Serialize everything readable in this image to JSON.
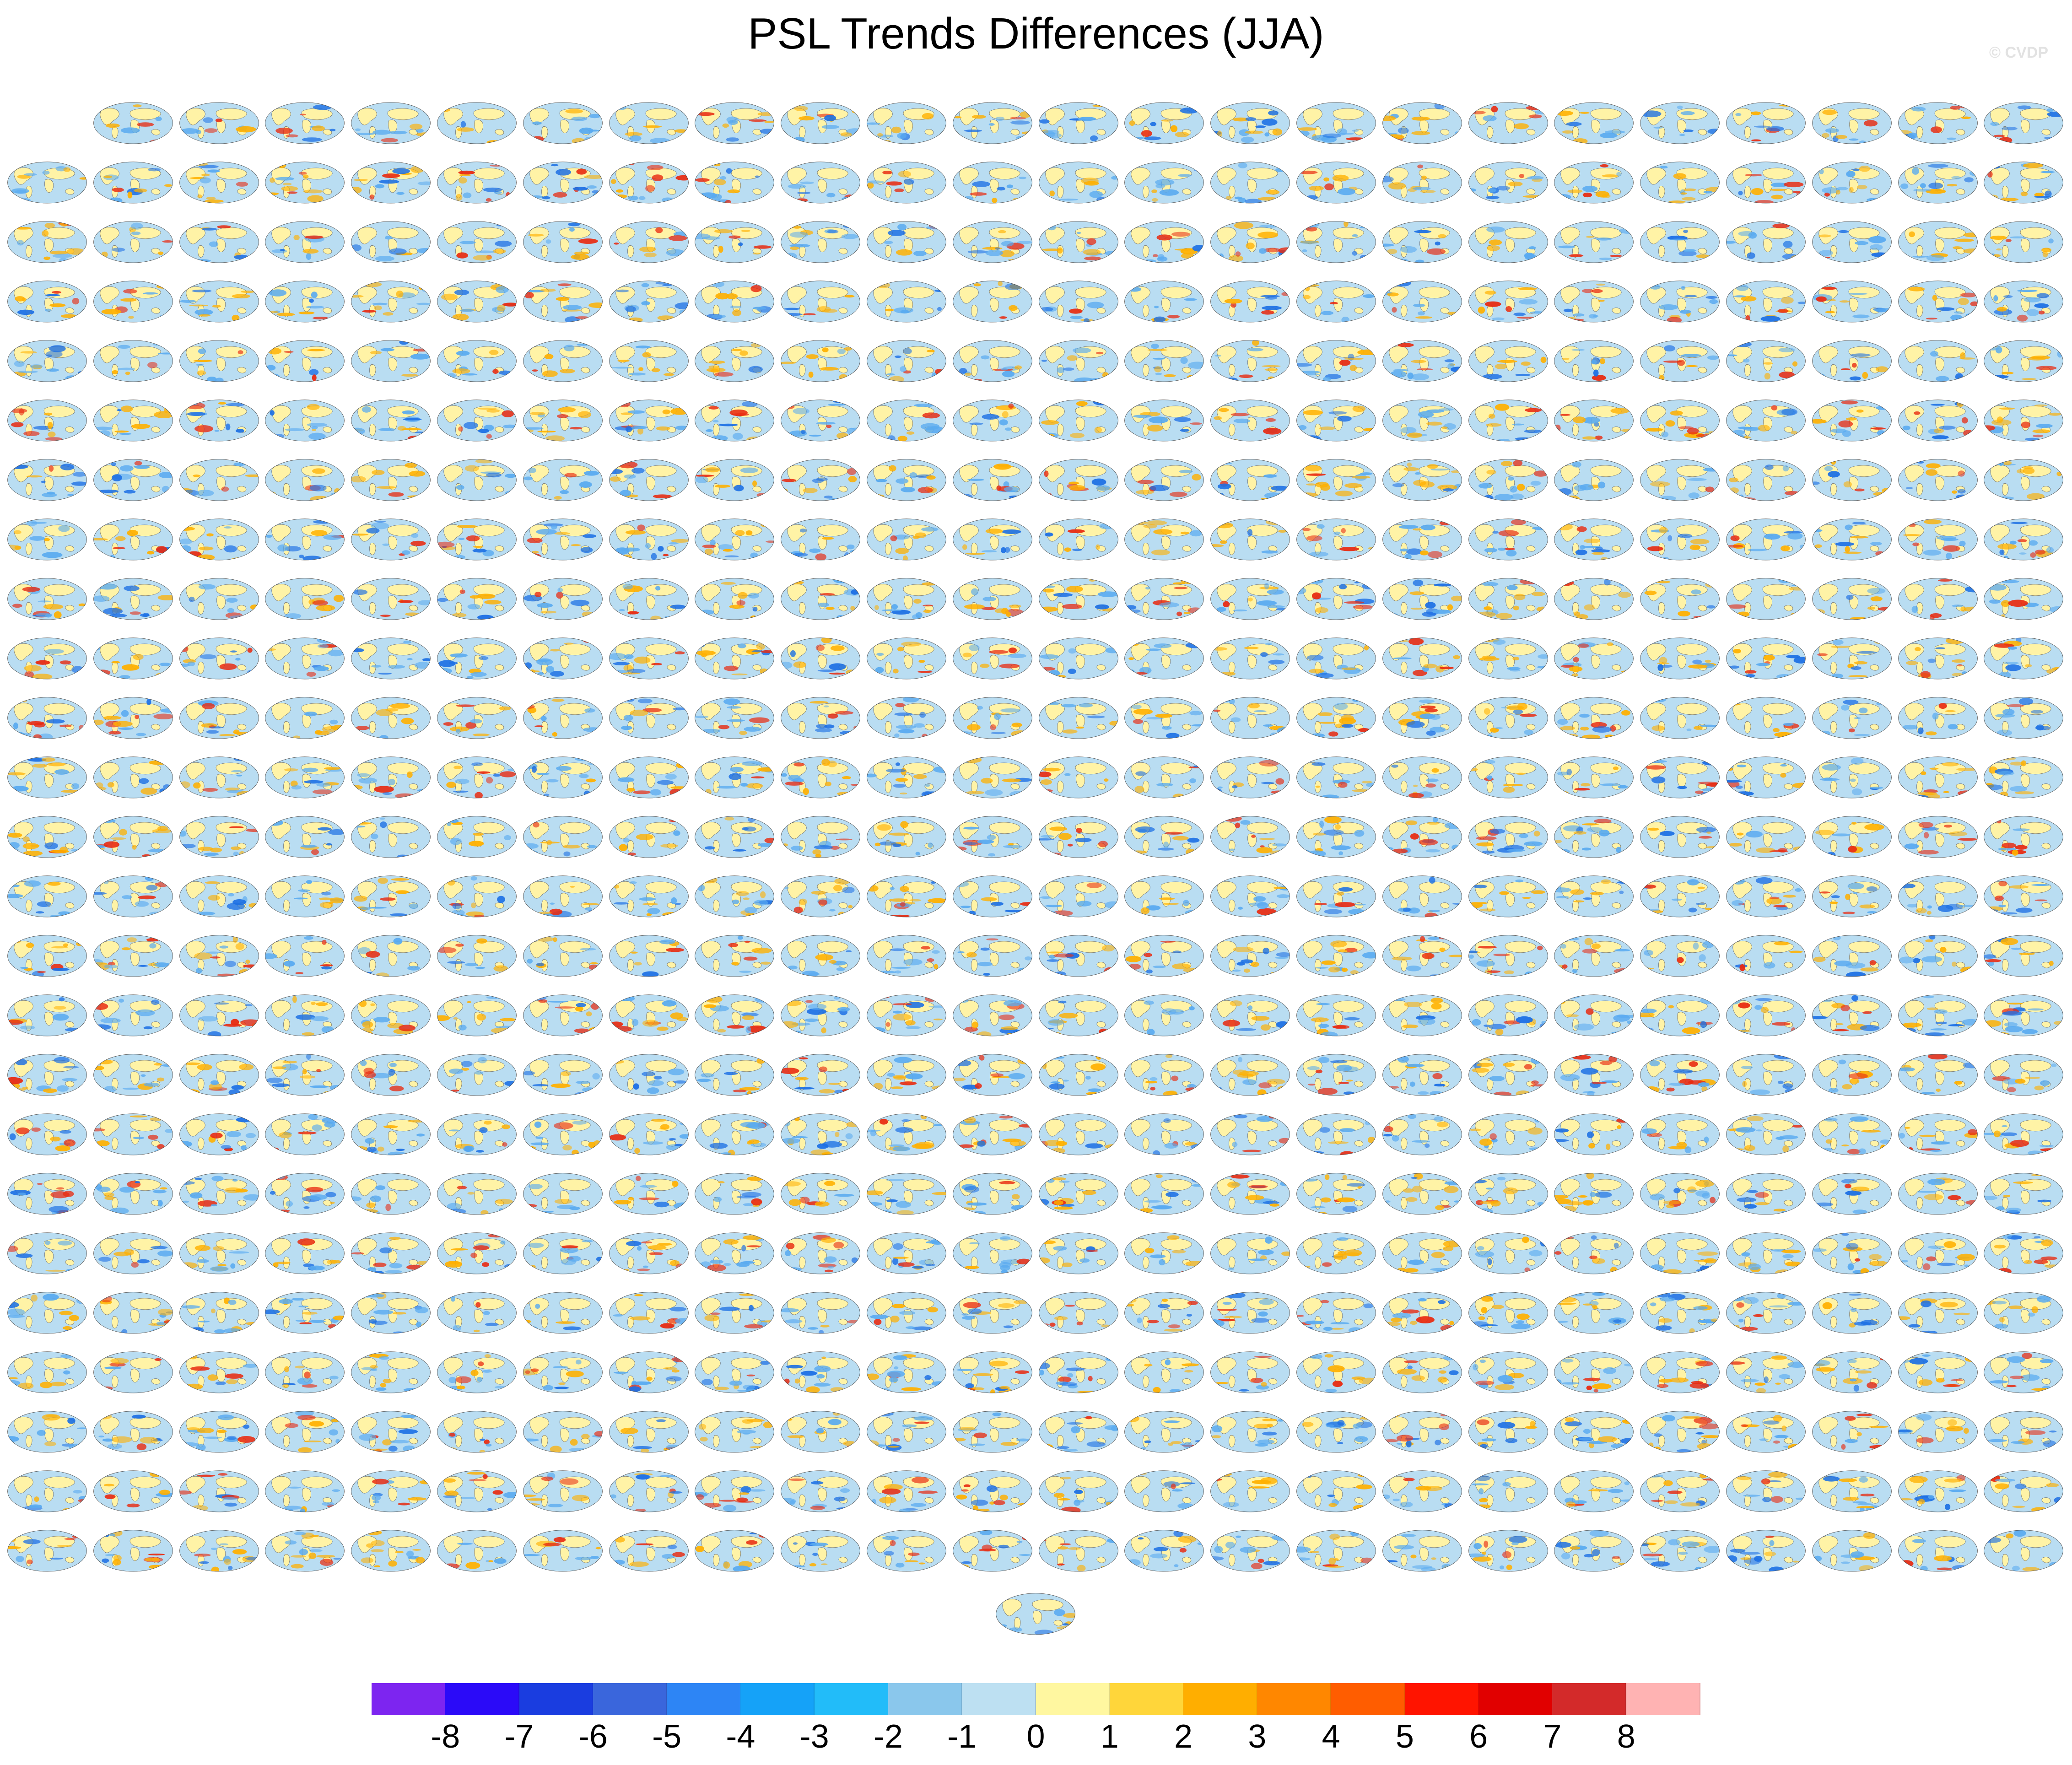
{
  "title": "PSL Trends Differences (JJA)",
  "copyright": "© CVDP",
  "panel_caption": "",
  "grid": {
    "first_row_panels": 23,
    "full_rows": 24,
    "panels_per_row": 24,
    "final_row_panels": 1
  },
  "colorbar": {
    "colors": [
      "#7d25f0",
      "#2b0af8",
      "#1a3de0",
      "#3a66dc",
      "#2d85f5",
      "#15a2f8",
      "#22bcf9",
      "#8ac7ec",
      "#bde0f2",
      "#fff7a0",
      "#ffd63a",
      "#ffae00",
      "#ff8700",
      "#ff5d00",
      "#ff1400",
      "#e10000",
      "#d32a2a",
      "#ffb3b3"
    ],
    "labels": [
      "-8",
      "-7",
      "-6",
      "-5",
      "-4",
      "-3",
      "-2",
      "-1",
      "0",
      "1",
      "2",
      "3",
      "4",
      "5",
      "6",
      "7",
      "8"
    ]
  },
  "map_palette": {
    "ocean": "#b9ddf2",
    "land": "#fff3a6",
    "neg_mid": "#59aaf0",
    "neg_strong": "#1c6fe4",
    "pos_mid": "#ffb000",
    "pos_strong": "#e82a10",
    "coast": "#666666"
  }
}
